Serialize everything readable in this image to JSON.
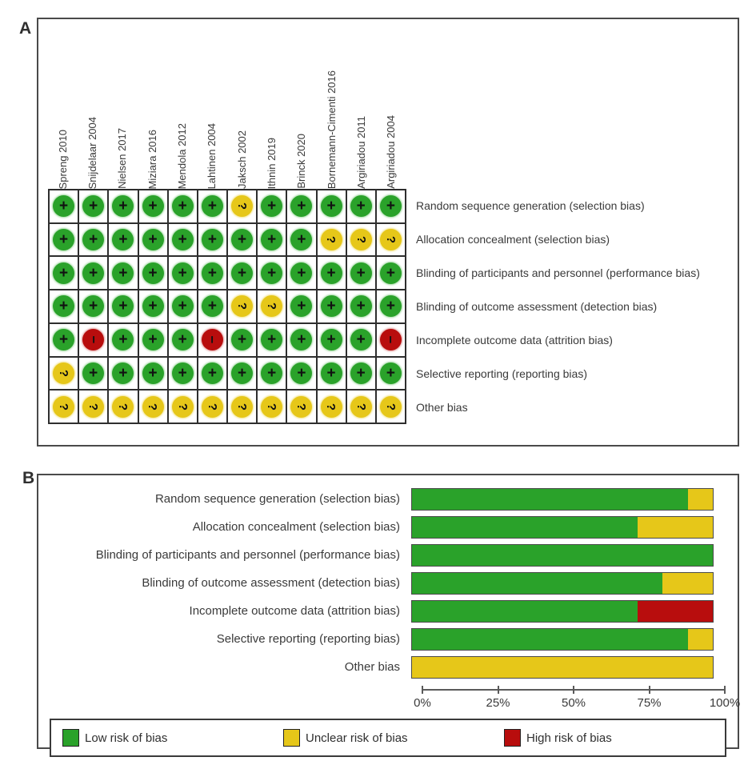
{
  "panel_a": {
    "label": "A",
    "studies": [
      "Spreng 2010",
      "Snijdelaar 2004",
      "Nielsen 2017",
      "Miziara 2016",
      "Mendola 2012",
      "Lahtinen 2004",
      "Jaksch 2002",
      "Ithnin 2019",
      "Brinck 2020",
      "Bornemann-Cimenti 2016",
      "Argiriadou 2011",
      "Argiriadou 2004"
    ],
    "domains": [
      {
        "label": "Random sequence generation (selection bias)",
        "judgements": [
          "low",
          "low",
          "low",
          "low",
          "low",
          "low",
          "unclear",
          "low",
          "low",
          "low",
          "low",
          "low"
        ]
      },
      {
        "label": "Allocation concealment (selection bias)",
        "judgements": [
          "low",
          "low",
          "low",
          "low",
          "low",
          "low",
          "low",
          "low",
          "low",
          "unclear",
          "unclear",
          "unclear"
        ]
      },
      {
        "label": "Blinding of participants and personnel (performance bias)",
        "judgements": [
          "low",
          "low",
          "low",
          "low",
          "low",
          "low",
          "low",
          "low",
          "low",
          "low",
          "low",
          "low"
        ]
      },
      {
        "label": "Blinding of outcome assessment (detection bias)",
        "judgements": [
          "low",
          "low",
          "low",
          "low",
          "low",
          "low",
          "unclear",
          "unclear",
          "low",
          "low",
          "low",
          "low"
        ]
      },
      {
        "label": "Incomplete outcome data (attrition bias)",
        "judgements": [
          "low",
          "high",
          "low",
          "low",
          "low",
          "high",
          "low",
          "low",
          "low",
          "low",
          "low",
          "high"
        ]
      },
      {
        "label": "Selective reporting (reporting bias)",
        "judgements": [
          "unclear",
          "low",
          "low",
          "low",
          "low",
          "low",
          "low",
          "low",
          "low",
          "low",
          "low",
          "low"
        ]
      },
      {
        "label": "Other bias",
        "judgements": [
          "unclear",
          "unclear",
          "unclear",
          "unclear",
          "unclear",
          "unclear",
          "unclear",
          "unclear",
          "unclear",
          "unclear",
          "unclear",
          "unclear"
        ]
      }
    ]
  },
  "panel_b": {
    "label": "B",
    "axis_tick_labels": [
      "0%",
      "25%",
      "50%",
      "75%",
      "100%"
    ],
    "legend": [
      {
        "key": "low",
        "label": "Low risk of bias",
        "color": "#2aa22a"
      },
      {
        "key": "unclear",
        "label": "Unclear risk of bias",
        "color": "#e6c719"
      },
      {
        "key": "high",
        "label": "High risk of bias",
        "color": "#b80d0d"
      }
    ]
  },
  "symbols": {
    "low": "+",
    "unclear": "?",
    "high": "−"
  },
  "colors": {
    "low": "#2aa22a",
    "unclear": "#e6c719",
    "high": "#b80d0d",
    "border": "#4a4a4a"
  },
  "chart_data": {
    "type": "bar",
    "subtype": "stacked-horizontal",
    "categories": [
      "Random sequence generation (selection bias)",
      "Allocation concealment (selection bias)",
      "Blinding of participants and personnel (performance bias)",
      "Blinding of outcome assessment (detection bias)",
      "Incomplete outcome data (attrition bias)",
      "Selective reporting (reporting bias)",
      "Other bias"
    ],
    "series": [
      {
        "name": "Low risk of bias",
        "color": "#2aa22a",
        "values": [
          91.7,
          75,
          100,
          83.3,
          75,
          91.7,
          0
        ]
      },
      {
        "name": "Unclear risk of bias",
        "color": "#e6c719",
        "values": [
          8.3,
          25,
          0,
          16.7,
          0,
          8.3,
          100
        ]
      },
      {
        "name": "High risk of bias",
        "color": "#b80d0d",
        "values": [
          0,
          0,
          0,
          0,
          25,
          0,
          0
        ]
      }
    ],
    "title": "",
    "xlabel": "",
    "ylabel": "",
    "xlim": [
      0,
      100
    ],
    "x_ticks": [
      0,
      25,
      50,
      75,
      100
    ],
    "grid": false,
    "legend_position": "bottom"
  }
}
